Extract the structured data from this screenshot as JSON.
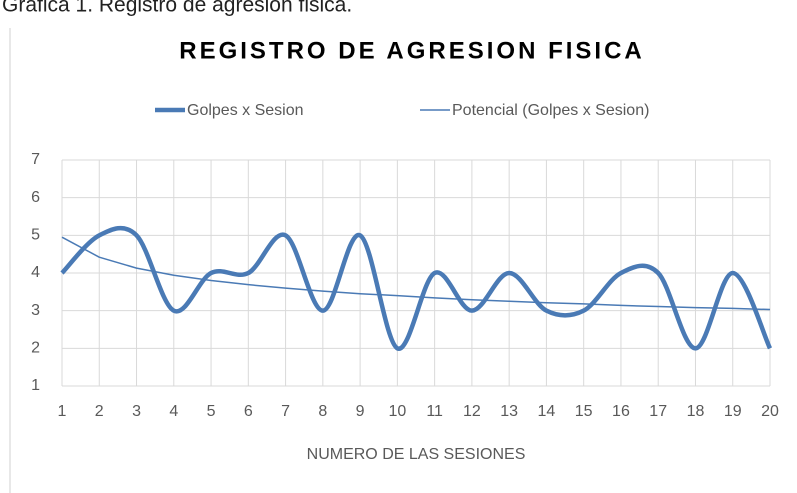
{
  "caption": "Gráfica 1. Registro de agresion fisica.",
  "chart_data": {
    "type": "line",
    "title": "REGISTRO DE AGRESION FISICA",
    "x_label": "NUMERO DE LAS SESIONES",
    "categories": [
      "1",
      "2",
      "3",
      "4",
      "5",
      "6",
      "7",
      "8",
      "9",
      "10",
      "11",
      "12",
      "13",
      "14",
      "15",
      "16",
      "17",
      "18",
      "19",
      "20"
    ],
    "series": [
      {
        "name": "Golpes x Sesion",
        "color": "#4a7ab5",
        "smooth": true,
        "values": [
          4,
          5,
          5,
          3,
          4,
          4,
          5,
          3,
          5,
          2,
          4,
          3,
          4,
          3,
          3,
          4,
          4,
          2,
          4,
          2
        ]
      },
      {
        "name": "Potencial (Golpes x Sesion)",
        "color": "#4a7ab5",
        "smooth": false,
        "values": [
          4.95,
          4.42,
          4.13,
          3.94,
          3.8,
          3.69,
          3.6,
          3.52,
          3.45,
          3.4,
          3.34,
          3.29,
          3.25,
          3.21,
          3.18,
          3.14,
          3.11,
          3.08,
          3.06,
          3.03
        ]
      }
    ],
    "ylim": [
      1,
      7
    ],
    "yticks": [
      1,
      2,
      3,
      4,
      5,
      6,
      7
    ],
    "grid": true,
    "legend": "top"
  }
}
